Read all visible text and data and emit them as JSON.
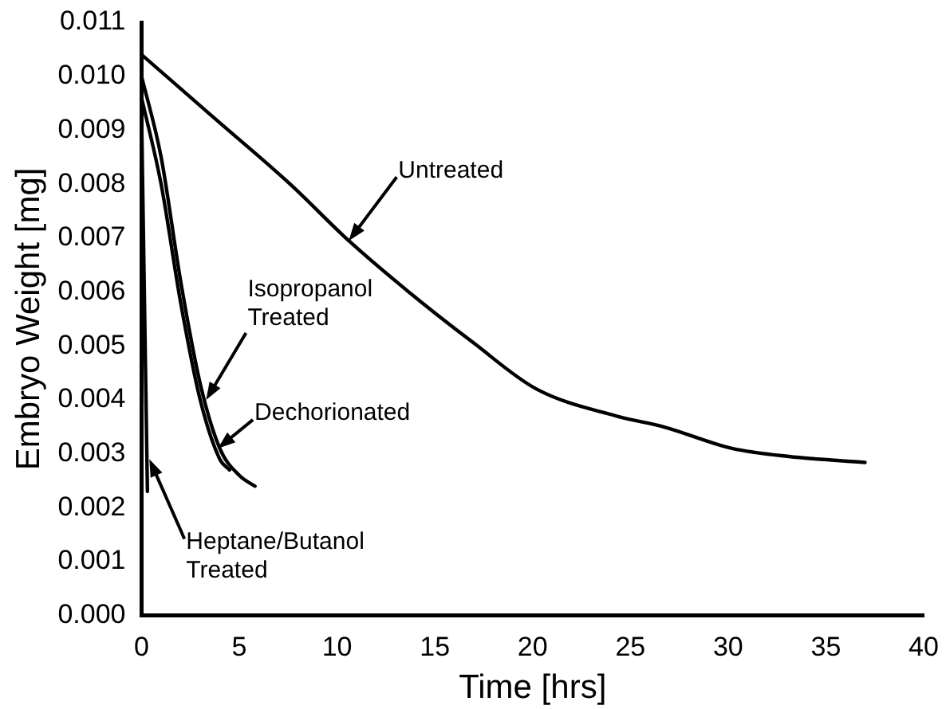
{
  "chart_data": {
    "type": "line",
    "xlabel": "Time [hrs]",
    "ylabel": "Embryo Weight [mg]",
    "xlim": [
      0,
      40
    ],
    "xticks": [
      0,
      5,
      10,
      15,
      20,
      25,
      30,
      35,
      40
    ],
    "ylim": [
      0,
      0.011
    ],
    "yticks": [
      {
        "value": 0,
        "label": "0.000"
      },
      {
        "value": 0.001,
        "label": "0.001"
      },
      {
        "value": 0.002,
        "label": "0.002"
      },
      {
        "value": 0.003,
        "label": "0.003"
      },
      {
        "value": 0.004,
        "label": "0.004"
      },
      {
        "value": 0.005,
        "label": "0.005"
      },
      {
        "value": 0.006,
        "label": "0.006"
      },
      {
        "value": 0.007,
        "label": "0.007"
      },
      {
        "value": 0.008,
        "label": "0.008"
      },
      {
        "value": 0.009,
        "label": "0.009"
      },
      {
        "value": 0.01,
        "label": "0.010"
      },
      {
        "value": 0.011,
        "label": "0.011"
      }
    ],
    "grid": false,
    "legend": false,
    "marker": "none",
    "line_style": "solid",
    "series": [
      {
        "color": "#000000",
        "x": [
          0,
          3.8,
          7.6,
          10.6,
          13.5,
          17,
          20.2,
          24.3,
          26.7,
          30.2,
          33.1,
          37
        ],
        "values": [
          0.0104,
          0.0092,
          0.008,
          0.00695,
          0.00605,
          0.00505,
          0.0042,
          0.0037,
          0.0035,
          0.0031,
          0.00295,
          0.00284
        ]
      },
      {
        "color": "#000000",
        "x": [
          0,
          1,
          2,
          3,
          4,
          5,
          5.8
        ],
        "values": [
          0.01,
          0.0085,
          0.0062,
          0.0043,
          0.0031,
          0.0026,
          0.0024
        ]
      },
      {
        "color": "#000000",
        "x": [
          0,
          1,
          2,
          3,
          4,
          4.5
        ],
        "values": [
          0.0096,
          0.008,
          0.0058,
          0.004,
          0.0029,
          0.0027
        ]
      },
      {
        "color": "#000000",
        "x": [
          0,
          0.3
        ],
        "values": [
          0.0093,
          0.0023
        ]
      }
    ],
    "annotations": [
      {
        "text": "Untreated",
        "x": 10.6,
        "y": 0.00695
      },
      {
        "text": "Isopropanol\nTreated",
        "x": 3.3,
        "y": 0.004
      },
      {
        "text": "Dechorionated",
        "x": 3.9,
        "y": 0.0031
      },
      {
        "text": "Heptane/Butanol\nTreated",
        "x": 0.4,
        "y": 0.0029
      }
    ]
  }
}
